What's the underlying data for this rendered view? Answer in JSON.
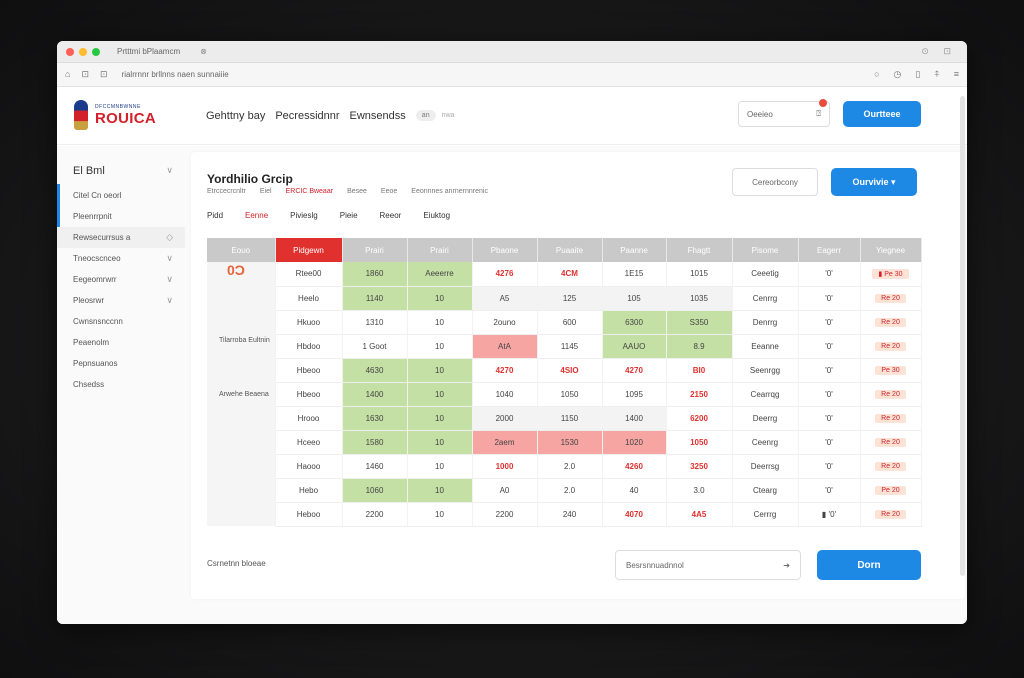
{
  "browser": {
    "tab_title": "Prtttmi bPlaamcm",
    "tab_close": "⊗",
    "right_icons": "⊙ ⊡",
    "url": "rialrrnnr brllnns naen sunnaiiie",
    "nav_icons": [
      "⌂",
      "⊡",
      "⊡"
    ],
    "toolbar_icons": [
      "○",
      "◷",
      "▯",
      "⍏",
      "≡"
    ]
  },
  "app": {
    "logo_sub": "DFCCMNBWNNE",
    "logo_main": "ROUICA",
    "nav": [
      "Gehttny bay",
      "Pecressidnnr",
      "Ewnsendss"
    ],
    "nav_pill": "an",
    "nav_pill_tail": "nwa",
    "header_input": "Oeeieo",
    "header_input_icon": "⍰",
    "header_button": "Ourtteee"
  },
  "sidebar": {
    "title": "El Bml",
    "title_chevron": "∨",
    "items": [
      {
        "label": "Citel Cn oeorl",
        "chevron": ""
      },
      {
        "label": "Pleenrrpnit",
        "chevron": ""
      },
      {
        "label": "Rewsecurrsus a",
        "chevron": "◇"
      },
      {
        "label": "Tneocscnceo",
        "chevron": "∨"
      },
      {
        "label": "Eegeomrwrr",
        "chevron": "∨"
      },
      {
        "label": "Pleosrwr",
        "chevron": "∨"
      },
      {
        "label": "Cwnsnsnccnn",
        "chevron": ""
      },
      {
        "label": "Peaenolm",
        "chevron": ""
      },
      {
        "label": "Pepnsuanos",
        "chevron": ""
      },
      {
        "label": "Chsedss",
        "chevron": ""
      }
    ]
  },
  "main": {
    "title": "Yordhilio Grcip",
    "subtitle": [
      "Etrccecrcnltr",
      "Eiel",
      "ERCIC Bweaar",
      "Besee",
      "Eeoe",
      "Eeonnnes anrnernnrenic"
    ],
    "subtitle_red_index": 2,
    "filters": [
      "Pidd",
      "Eenne",
      "Pivieslg",
      "Pieie",
      "Reeor",
      "Eiuktog"
    ],
    "filters_red_index": 1,
    "btn_outline": "Cereorbcony",
    "btn_primary": "Ourvivie",
    "btn_primary_caret": "▾",
    "table": {
      "headers": [
        "Eouo",
        "Pidgewn",
        "Prairi",
        "Prairi",
        "Pbaone",
        "Puaaite",
        "Paanne",
        "Fhagtt",
        "Pisome",
        "Eagerr",
        "Yiegnee"
      ],
      "team_badge": "0Ɔ",
      "team_label_1": "Tilarroba Eultnin",
      "team_label_2": "Arwehe Beaena",
      "rows": [
        {
          "cells": [
            "Rtee00",
            "1860",
            "Aeeerre",
            "4276",
            "4CM",
            "1E15",
            "1015",
            "Ceeetig",
            "'0'",
            "▮ Pe 30"
          ],
          "styles": [
            "",
            "g",
            "g",
            "redt",
            "redt",
            "",
            "",
            "",
            "",
            "tag"
          ]
        },
        {
          "cells": [
            "Heelo",
            "1140",
            "10",
            "A5",
            "125",
            "105",
            "1035",
            "Cenrrg",
            "'0'",
            "Re 20"
          ],
          "styles": [
            "",
            "g",
            "g",
            "gray",
            "gray",
            "gray",
            "gray",
            "",
            "",
            "tag"
          ]
        },
        {
          "cells": [
            "Hkuoo",
            "1310",
            "10",
            "2ouno",
            "600",
            "6300",
            "S350",
            "Denrrg",
            "'0'",
            "Re 20"
          ],
          "styles": [
            "",
            "",
            "",
            "",
            "",
            "g",
            "g",
            "",
            "",
            "tag"
          ]
        },
        {
          "cells": [
            "Hbdoo",
            "1 Goot",
            "10",
            "AtA",
            "1145",
            "AAUO",
            "8.9",
            "Eeanne",
            "'0'",
            "Re 20"
          ],
          "styles": [
            "",
            "",
            "",
            "r",
            "",
            "g",
            "g",
            "",
            "",
            "tag"
          ]
        },
        {
          "cells": [
            "Hbeoo",
            "4630",
            "10",
            "4270",
            "4SIO",
            "4270",
            "BI0",
            "Seenrgg",
            "'0'",
            "Pe 30"
          ],
          "styles": [
            "",
            "g",
            "g",
            "redt",
            "redt",
            "redt",
            "redt",
            "",
            "",
            "tag"
          ]
        },
        {
          "cells": [
            "Hbeoo",
            "1400",
            "10",
            "1040",
            "1050",
            "1095",
            "2150",
            "Cearrqg",
            "'0'",
            "Re 20"
          ],
          "styles": [
            "",
            "g",
            "g",
            "",
            "",
            "",
            "redt",
            "",
            "",
            "tag"
          ]
        },
        {
          "cells": [
            "Hrooo",
            "1630",
            "10",
            "2000",
            "1150",
            "1400",
            "6200",
            "Deerrg",
            "'0'",
            "Re 20"
          ],
          "styles": [
            "",
            "g",
            "g",
            "gray",
            "gray",
            "gray",
            "redt",
            "",
            "",
            "tag"
          ]
        },
        {
          "cells": [
            "Hceeo",
            "1580",
            "10",
            "2aem",
            "1530",
            "1020",
            "1050",
            "Ceenrg",
            "'0'",
            "Re 20"
          ],
          "styles": [
            "",
            "g",
            "g",
            "r",
            "r",
            "r",
            "redt",
            "",
            "",
            "tag"
          ]
        },
        {
          "cells": [
            "Haooo",
            "1460",
            "10",
            "1000",
            "2.0",
            "4260",
            "3250",
            "Deerrsg",
            "'0'",
            "Re 20"
          ],
          "styles": [
            "",
            "",
            "",
            "redt",
            "",
            "redt",
            "redt",
            "",
            "",
            "tag"
          ]
        },
        {
          "cells": [
            "Hebo",
            "1060",
            "10",
            "A0",
            "2.0",
            "40",
            "3.0",
            "Ctearg",
            "'0'",
            "Pe 20"
          ],
          "styles": [
            "",
            "g",
            "g",
            "",
            "",
            "",
            "",
            "",
            "",
            "tag"
          ]
        },
        {
          "cells": [
            "Heboo",
            "2200",
            "10",
            "2200",
            "240",
            "4070",
            "4A5",
            "Cerrrg",
            "▮ '0'",
            "Re 20"
          ],
          "styles": [
            "",
            "",
            "",
            "",
            "",
            "redt",
            "redt",
            "",
            "",
            "tag"
          ]
        }
      ]
    },
    "footer_left": "Csrnetnn bloeae",
    "footer_search": "Besrsnnuadnnol",
    "footer_search_icon": "➔",
    "footer_button": "Dorn"
  }
}
